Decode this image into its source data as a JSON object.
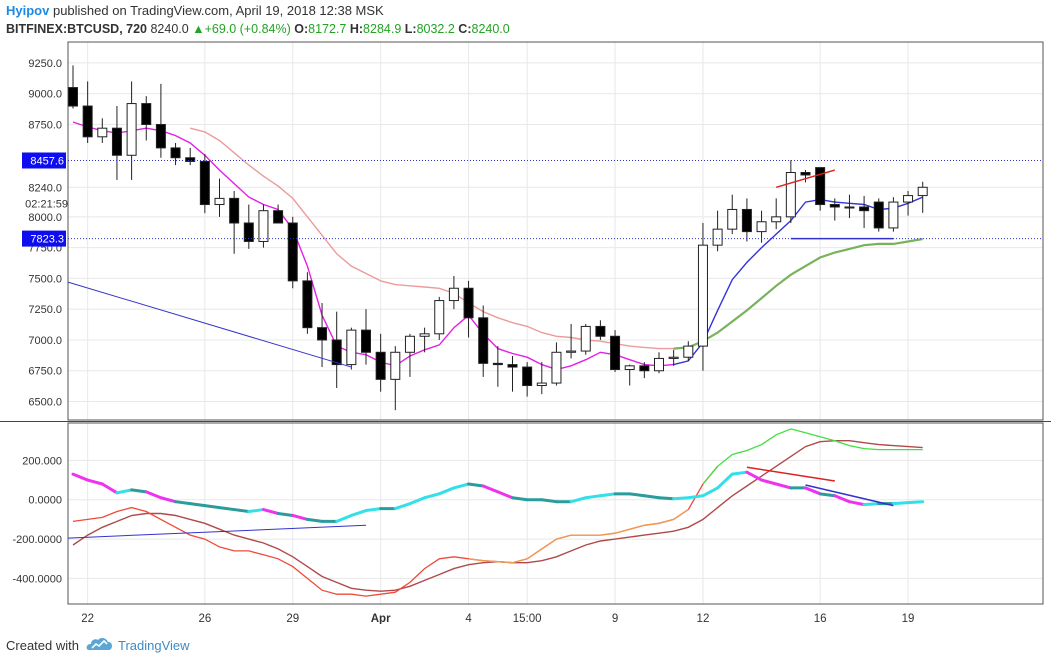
{
  "header": {
    "author": "Hyipov",
    "published_text": "published on TradingView.com, April 19, 2018 12:38 MSK",
    "symbol": "BITFINEX:BTCUSD, 720",
    "last": "8240.0",
    "change": "+69.0 (+0.84%)",
    "o_label": "O:",
    "o_value": "8172.7",
    "h_label": "H:",
    "h_value": "8284.9",
    "l_label": "L:",
    "l_value": "8032.2",
    "c_label": "C:",
    "c_value": "8240.0"
  },
  "footer": {
    "created_with": "Created with",
    "brand": "TradingView"
  },
  "colors": {
    "up_fill": "#ffffff",
    "down_fill": "#000000",
    "candle_stroke": "#222222",
    "ma_fast": "#e61ee6",
    "ma_fast_late": "#3333dd",
    "ma_slow": "#e88a8a",
    "ma_slow_late": "#6aaa4a",
    "trendline": "#3333cc",
    "divergence_red": "#dd2222",
    "osc_teal": "#2a9c9c",
    "osc_cyan": "#33e0e8",
    "osc_magenta": "#ee33ee",
    "sig_orange": "#f09a50",
    "sig_red": "#f04a3a",
    "sig_green": "#40e040",
    "slow_brown": "#b04a4a",
    "price_label_bg": "#0d0df0",
    "grid": "#e8e8e8"
  },
  "chart_data": [
    {
      "type": "candlestick",
      "title": "BITFINEX:BTCUSD, 720",
      "ylim": [
        6350,
        9420
      ],
      "y_ticks": [
        "9250.0",
        "9000.0",
        "8750.0",
        "8240.0",
        "8000.0",
        "7750.0",
        "7500.0",
        "7250.0",
        "7000.0",
        "6750.0",
        "6500.0"
      ],
      "y_tick_values": [
        9250,
        9000,
        8750,
        8240,
        8000,
        7750,
        7500,
        7250,
        7000,
        6750,
        6500
      ],
      "x_ticks": [
        {
          "label": "22",
          "i": 1
        },
        {
          "label": "26",
          "i": 9
        },
        {
          "label": "29",
          "i": 15
        },
        {
          "label": "Apr",
          "i": 21
        },
        {
          "label": "4",
          "i": 27
        },
        {
          "label": "15:00",
          "i": 31
        },
        {
          "label": "9",
          "i": 37
        },
        {
          "label": "12",
          "i": 43
        },
        {
          "label": "16",
          "i": 51
        },
        {
          "label": "19",
          "i": 57
        }
      ],
      "price_labels": [
        {
          "text": "8457.6",
          "value": 8457.6
        },
        {
          "text": "02:21:59",
          "value": 8110
        },
        {
          "text": "7823.3",
          "value": 7823.3
        }
      ],
      "horizontal_lines": [
        8457.6,
        7823.3
      ],
      "candles": [
        {
          "o": 9050,
          "h": 9230,
          "l": 8880,
          "c": 8900
        },
        {
          "o": 8900,
          "h": 9100,
          "l": 8600,
          "c": 8650
        },
        {
          "o": 8650,
          "h": 8800,
          "l": 8600,
          "c": 8720
        },
        {
          "o": 8720,
          "h": 8900,
          "l": 8300,
          "c": 8500
        },
        {
          "o": 8500,
          "h": 9100,
          "l": 8300,
          "c": 8920
        },
        {
          "o": 8920,
          "h": 8980,
          "l": 8620,
          "c": 8750
        },
        {
          "o": 8750,
          "h": 9080,
          "l": 8480,
          "c": 8560
        },
        {
          "o": 8560,
          "h": 8600,
          "l": 8420,
          "c": 8480
        },
        {
          "o": 8480,
          "h": 8560,
          "l": 8420,
          "c": 8450
        },
        {
          "o": 8450,
          "h": 8510,
          "l": 8030,
          "c": 8100
        },
        {
          "o": 8100,
          "h": 8310,
          "l": 8000,
          "c": 8150
        },
        {
          "o": 8150,
          "h": 8210,
          "l": 7700,
          "c": 7950
        },
        {
          "o": 7950,
          "h": 8100,
          "l": 7740,
          "c": 7800
        },
        {
          "o": 7800,
          "h": 8100,
          "l": 7750,
          "c": 8050
        },
        {
          "o": 8050,
          "h": 8100,
          "l": 7950,
          "c": 7950
        },
        {
          "o": 7950,
          "h": 8000,
          "l": 7420,
          "c": 7480
        },
        {
          "o": 7480,
          "h": 7550,
          "l": 7050,
          "c": 7100
        },
        {
          "o": 7100,
          "h": 7300,
          "l": 6780,
          "c": 7000
        },
        {
          "o": 7000,
          "h": 7230,
          "l": 6610,
          "c": 6800
        },
        {
          "o": 6800,
          "h": 7100,
          "l": 6760,
          "c": 7080
        },
        {
          "o": 7080,
          "h": 7250,
          "l": 6800,
          "c": 6900
        },
        {
          "o": 6900,
          "h": 7050,
          "l": 6580,
          "c": 6680
        },
        {
          "o": 6680,
          "h": 6950,
          "l": 6430,
          "c": 6900
        },
        {
          "o": 6900,
          "h": 7050,
          "l": 6700,
          "c": 7030
        },
        {
          "o": 7030,
          "h": 7100,
          "l": 6900,
          "c": 7050
        },
        {
          "o": 7050,
          "h": 7350,
          "l": 7000,
          "c": 7320
        },
        {
          "o": 7320,
          "h": 7520,
          "l": 7250,
          "c": 7420
        },
        {
          "o": 7420,
          "h": 7480,
          "l": 7020,
          "c": 7180
        },
        {
          "o": 7180,
          "h": 7280,
          "l": 6700,
          "c": 6810
        },
        {
          "o": 6810,
          "h": 6950,
          "l": 6620,
          "c": 6800
        },
        {
          "o": 6800,
          "h": 6870,
          "l": 6580,
          "c": 6780
        },
        {
          "o": 6780,
          "h": 6820,
          "l": 6540,
          "c": 6630
        },
        {
          "o": 6630,
          "h": 6820,
          "l": 6560,
          "c": 6650
        },
        {
          "o": 6650,
          "h": 6980,
          "l": 6630,
          "c": 6900
        },
        {
          "o": 6900,
          "h": 7130,
          "l": 6850,
          "c": 6910
        },
        {
          "o": 6910,
          "h": 7130,
          "l": 6880,
          "c": 7110
        },
        {
          "o": 7110,
          "h": 7160,
          "l": 7000,
          "c": 7030
        },
        {
          "o": 7030,
          "h": 7080,
          "l": 6740,
          "c": 6760
        },
        {
          "o": 6760,
          "h": 6800,
          "l": 6630,
          "c": 6790
        },
        {
          "o": 6790,
          "h": 6820,
          "l": 6690,
          "c": 6750
        },
        {
          "o": 6750,
          "h": 6900,
          "l": 6730,
          "c": 6850
        },
        {
          "o": 6850,
          "h": 6920,
          "l": 6790,
          "c": 6860
        },
        {
          "o": 6860,
          "h": 6990,
          "l": 6830,
          "c": 6950
        },
        {
          "o": 6950,
          "h": 7950,
          "l": 6750,
          "c": 7770
        },
        {
          "o": 7770,
          "h": 8050,
          "l": 7720,
          "c": 7900
        },
        {
          "o": 7900,
          "h": 8180,
          "l": 7860,
          "c": 8060
        },
        {
          "o": 8060,
          "h": 8150,
          "l": 7800,
          "c": 7880
        },
        {
          "o": 7880,
          "h": 8050,
          "l": 7790,
          "c": 7960
        },
        {
          "o": 7960,
          "h": 8150,
          "l": 7900,
          "c": 8000
        },
        {
          "o": 8000,
          "h": 8460,
          "l": 7950,
          "c": 8360
        },
        {
          "o": 8360,
          "h": 8380,
          "l": 8280,
          "c": 8340
        },
        {
          "o": 8400,
          "h": 8400,
          "l": 8050,
          "c": 8100
        },
        {
          "o": 8100,
          "h": 8150,
          "l": 7970,
          "c": 8080
        },
        {
          "o": 8080,
          "h": 8180,
          "l": 7990,
          "c": 8080
        },
        {
          "o": 8080,
          "h": 8170,
          "l": 7910,
          "c": 8050
        },
        {
          "o": 8120,
          "h": 8150,
          "l": 7880,
          "c": 7910
        },
        {
          "o": 7910,
          "h": 8160,
          "l": 7880,
          "c": 8120
        },
        {
          "o": 8120,
          "h": 8210,
          "l": 8010,
          "c": 8172.7
        },
        {
          "o": 8172.7,
          "h": 8284.9,
          "l": 8032.2,
          "c": 8240
        }
      ],
      "ma_fast": [
        8770,
        8730,
        8700,
        8680,
        8700,
        8720,
        8700,
        8660,
        8600,
        8500,
        8380,
        8270,
        8160,
        8100,
        8060,
        7900,
        7600,
        7200,
        6950,
        6900,
        6880,
        6820,
        6790,
        6870,
        6920,
        6960,
        7100,
        7200,
        7050,
        6930,
        6890,
        6860,
        6800,
        6760,
        6790,
        6840,
        6900,
        6880,
        6840,
        6800,
        6790,
        6800,
        6830,
        6980,
        7240,
        7490,
        7630,
        7750,
        7860,
        7970,
        8120,
        8140,
        8120,
        8110,
        8100,
        8060,
        8070,
        8110,
        8160
      ],
      "ma_slow": [
        null,
        null,
        null,
        null,
        null,
        null,
        null,
        null,
        8720,
        8690,
        8620,
        8520,
        8420,
        8330,
        8250,
        8150,
        8000,
        7850,
        7700,
        7600,
        7540,
        7480,
        7450,
        7440,
        7430,
        7420,
        7380,
        7300,
        7230,
        7180,
        7140,
        7110,
        7060,
        7030,
        7020,
        7000,
        6990,
        6970,
        6950,
        6940,
        6930,
        6930,
        6940,
        6990,
        7060,
        7150,
        7240,
        7340,
        7440,
        7530,
        7600,
        7670,
        7710,
        7740,
        7770,
        7780,
        7780,
        7800,
        7820
      ]
    },
    {
      "type": "line",
      "title": "",
      "ylim": [
        -530,
        390
      ],
      "y_ticks": [
        "200.000",
        "0.0000",
        "-200.0000",
        "-400.0000"
      ],
      "y_tick_values": [
        200,
        0,
        -200,
        -400
      ],
      "series": [
        {
          "role": "main",
          "values": [
            130,
            100,
            80,
            35,
            50,
            40,
            10,
            -10,
            -20,
            -30,
            -40,
            -50,
            -60,
            -50,
            -70,
            -80,
            -100,
            -110,
            -110,
            -80,
            -55,
            -45,
            -45,
            -20,
            10,
            30,
            60,
            80,
            70,
            40,
            10,
            0,
            0,
            -10,
            -10,
            10,
            20,
            30,
            30,
            20,
            10,
            5,
            10,
            20,
            60,
            130,
            140,
            100,
            80,
            60,
            60,
            30,
            20,
            -10,
            -25,
            -20,
            -20,
            -15,
            -10
          ]
        },
        {
          "role": "signal",
          "values": [
            -110,
            -100,
            -90,
            -60,
            -40,
            -60,
            -100,
            -140,
            -180,
            -200,
            -240,
            -260,
            -260,
            -280,
            -300,
            -340,
            -400,
            -460,
            -480,
            -480,
            -490,
            -480,
            -470,
            -420,
            -350,
            -300,
            -290,
            -300,
            -310,
            -315,
            -320,
            -300,
            -250,
            -200,
            -180,
            -180,
            -180,
            -170,
            -150,
            -130,
            -120,
            -100,
            -50,
            80,
            170,
            230,
            250,
            280,
            330,
            360,
            340,
            320,
            300,
            275,
            260,
            255,
            255,
            255,
            255
          ]
        },
        {
          "role": "slow",
          "values": [
            -230,
            -180,
            -140,
            -110,
            -80,
            -70,
            -70,
            -80,
            -100,
            -120,
            -150,
            -180,
            -200,
            -220,
            -250,
            -290,
            -340,
            -390,
            -420,
            -450,
            -460,
            -465,
            -460,
            -440,
            -410,
            -380,
            -350,
            -330,
            -320,
            -315,
            -320,
            -320,
            -310,
            -290,
            -260,
            -230,
            -210,
            -200,
            -190,
            -180,
            -170,
            -160,
            -140,
            -100,
            -40,
            20,
            70,
            120,
            170,
            220,
            270,
            295,
            300,
            300,
            290,
            280,
            275,
            270,
            265
          ]
        }
      ],
      "zero_line": true
    }
  ]
}
